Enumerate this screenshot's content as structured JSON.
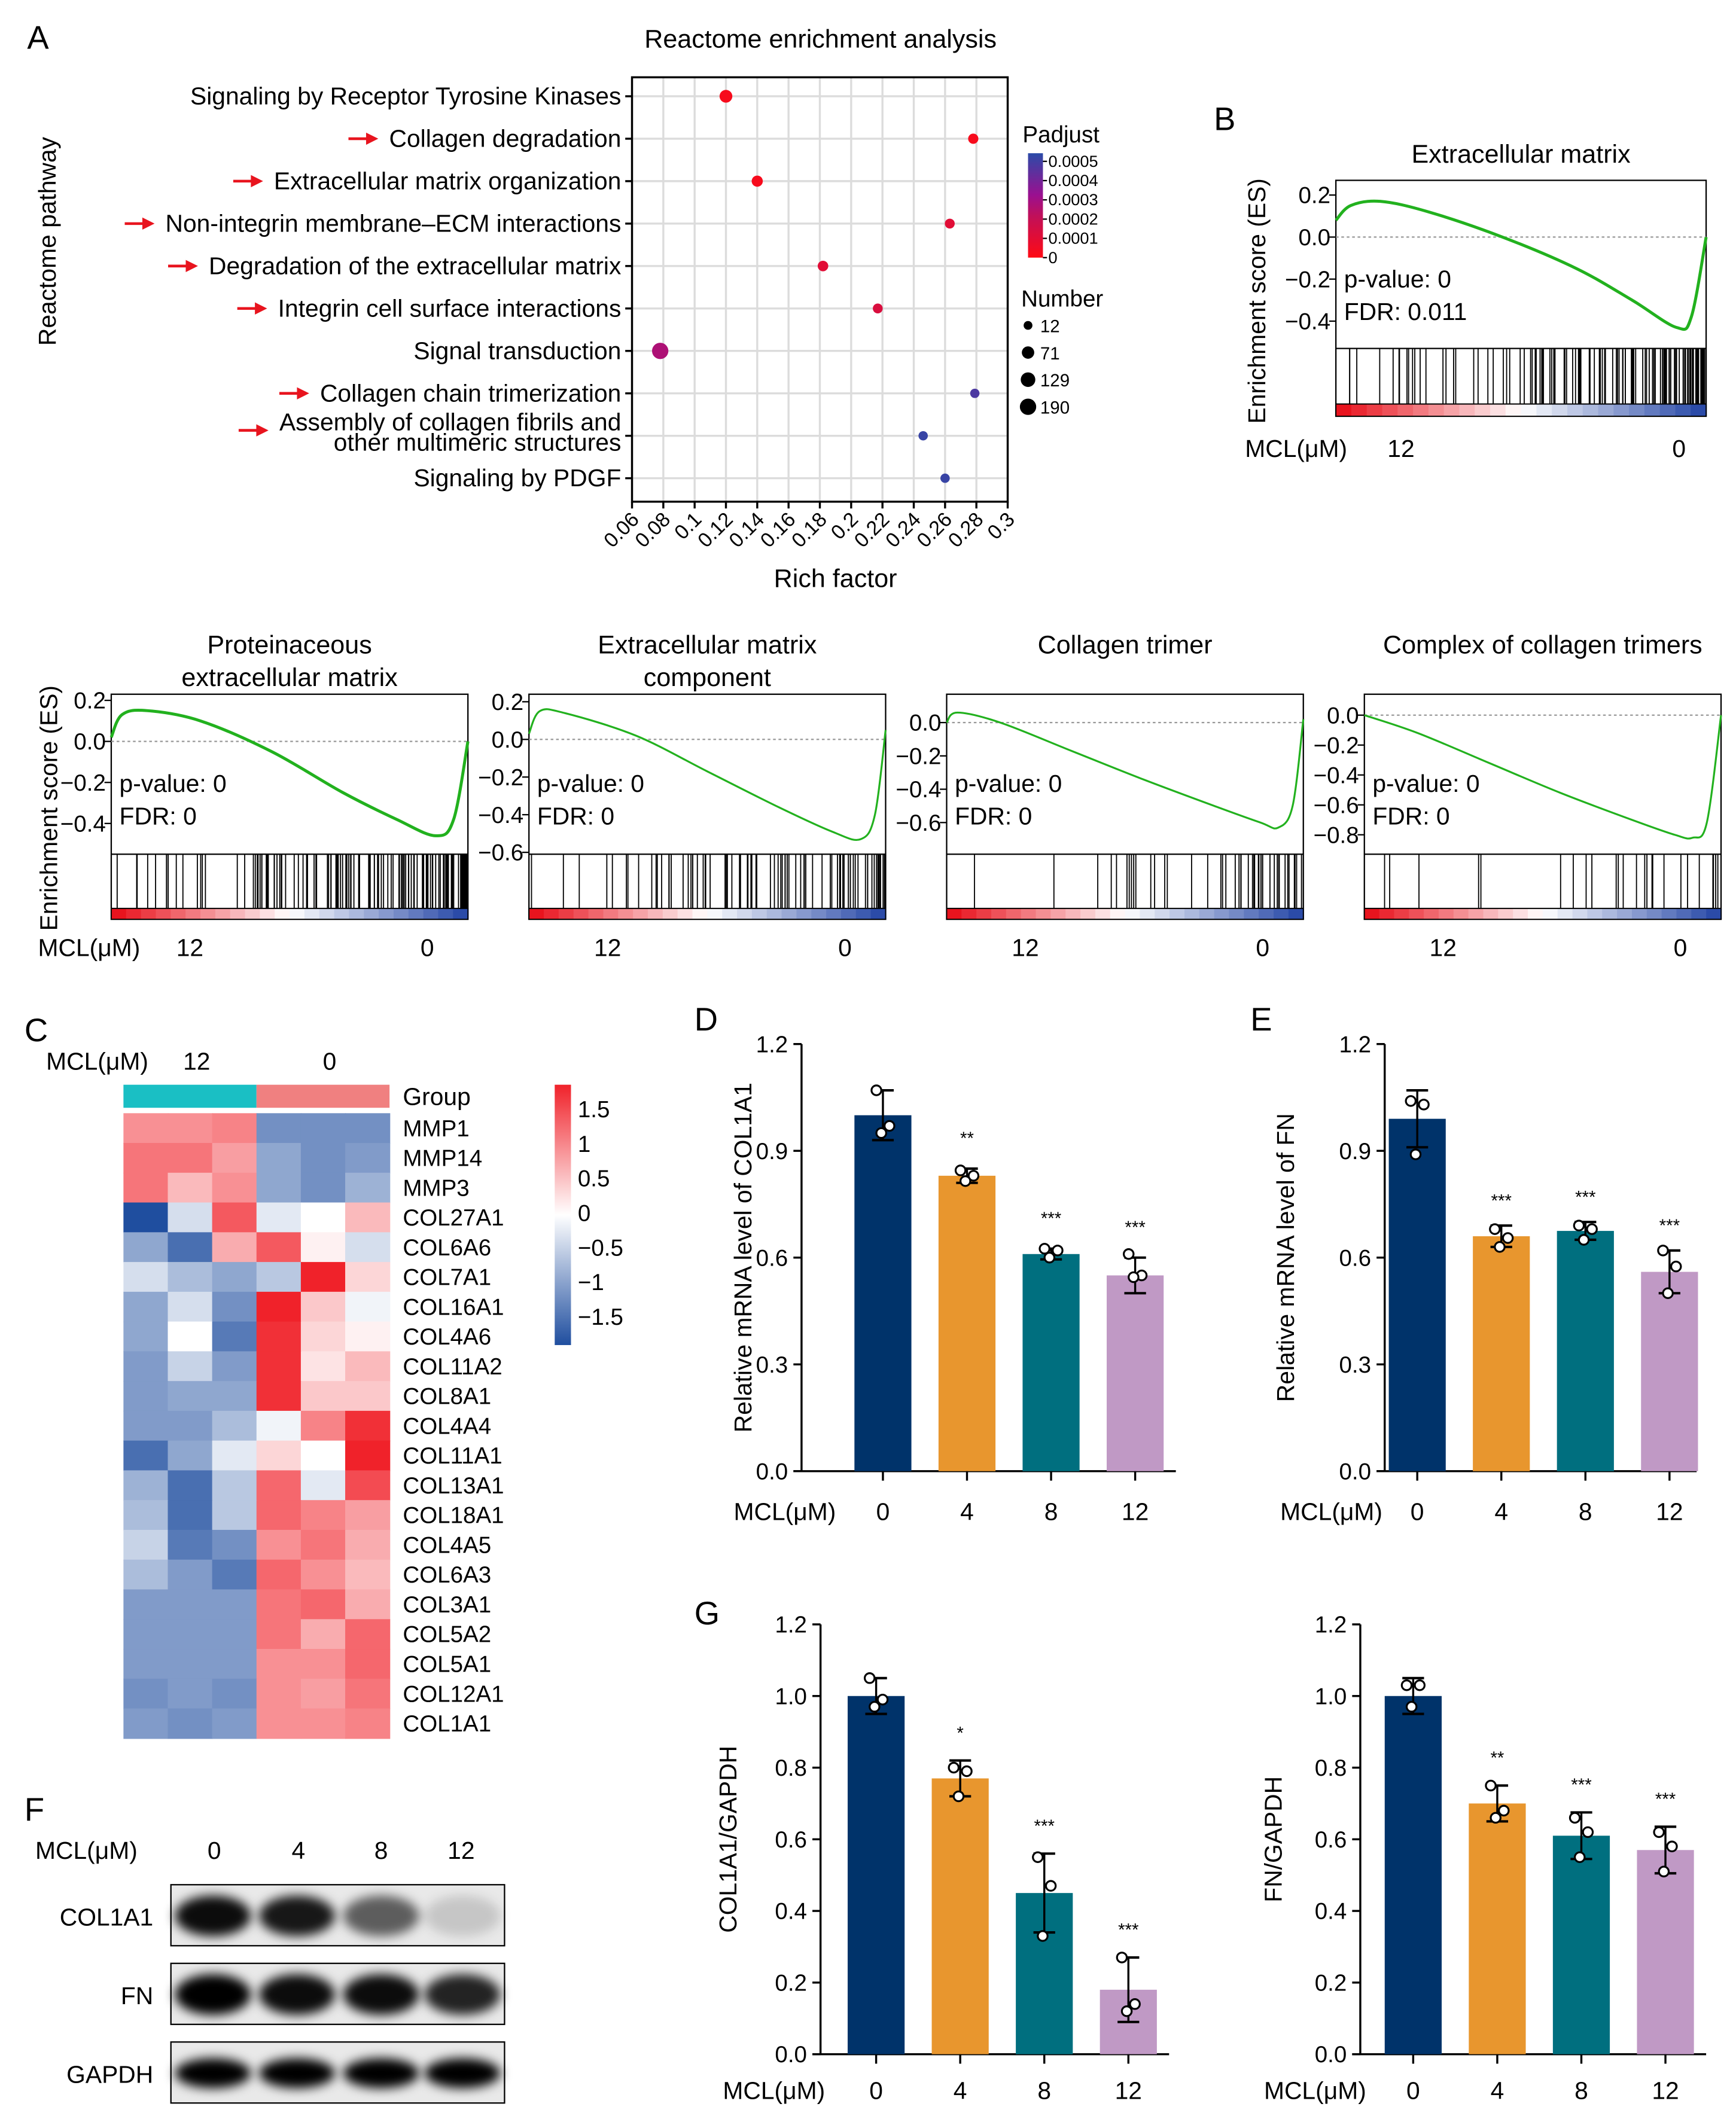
{
  "panel_letters": {
    "a": "A",
    "b": "B",
    "c": "C",
    "d": "D",
    "e": "E",
    "f": "F",
    "g": "G"
  },
  "chart_data": [
    {
      "id": "A",
      "type": "scatter",
      "title": "Reactome enrichment analysis",
      "xlabel": "Rich factor",
      "ylabel": "Reactome pathway",
      "xlim": [
        0.06,
        0.3
      ],
      "xticks": [
        "0.06",
        "0.08",
        "0.1",
        "0.12",
        "0.14",
        "0.16",
        "0.18",
        "0.2",
        "0.22",
        "0.24",
        "0.26",
        "0.28",
        "0.3"
      ],
      "grid": true,
      "arrow_color": "#E8141E",
      "pathways": [
        {
          "label_lines": [
            "Signaling by Receptor Tyrosine Kinases"
          ],
          "rich_factor": 0.12,
          "padjust": 2e-05,
          "number": 80,
          "arrow": false
        },
        {
          "label_lines": [
            "Collagen degradation"
          ],
          "rich_factor": 0.278,
          "padjust": 2e-05,
          "number": 30,
          "arrow": true
        },
        {
          "label_lines": [
            "Extracellular matrix organization"
          ],
          "rich_factor": 0.14,
          "padjust": 2e-05,
          "number": 45,
          "arrow": true
        },
        {
          "label_lines": [
            "Non-integrin membrane–ECM interactions"
          ],
          "rich_factor": 0.263,
          "padjust": 8e-05,
          "number": 25,
          "arrow": true
        },
        {
          "label_lines": [
            "Degradation of the extracellular matrix"
          ],
          "rich_factor": 0.182,
          "padjust": 8e-05,
          "number": 35,
          "arrow": true
        },
        {
          "label_lines": [
            "Integrin cell surface interactions"
          ],
          "rich_factor": 0.217,
          "padjust": 0.0001,
          "number": 25,
          "arrow": true
        },
        {
          "label_lines": [
            "Signal transduction"
          ],
          "rich_factor": 0.078,
          "padjust": 0.00025,
          "number": 190,
          "arrow": false
        },
        {
          "label_lines": [
            "Collagen chain trimerization"
          ],
          "rich_factor": 0.279,
          "padjust": 0.00045,
          "number": 18,
          "arrow": true
        },
        {
          "label_lines": [
            "Assembly of collagen fibrils and",
            "other multimeric structures"
          ],
          "rich_factor": 0.246,
          "padjust": 0.00048,
          "number": 18,
          "arrow": true
        },
        {
          "label_lines": [
            "Signaling by PDGF"
          ],
          "rich_factor": 0.26,
          "padjust": 0.00048,
          "number": 18,
          "arrow": false
        }
      ],
      "legend_color": {
        "title": "Padjust",
        "ticks": [
          "0.0005",
          "0.0004",
          "0.0003",
          "0.0002",
          "0.0001",
          "0"
        ],
        "colors": [
          "#FF0A14",
          "#C0105A",
          "#9A1090",
          "#2B4BA8"
        ]
      },
      "legend_size": {
        "title": "Number",
        "values": [
          "12",
          "71",
          "129",
          "190"
        ]
      }
    },
    {
      "id": "B",
      "type": "line",
      "title_lines": [
        "Extracellular matrix"
      ],
      "ylabel": "Enrichment score (ES)",
      "ylim": [
        -0.53,
        0.27
      ],
      "yticks": [
        "0.2",
        "0.0",
        "−0.2",
        "−0.4"
      ],
      "ytick_values": [
        0.2,
        0,
        -0.2,
        -0.4
      ],
      "stats": [
        "p-value: 0",
        "FDR: 0.011"
      ],
      "curve": [
        [
          0,
          0.08
        ],
        [
          4,
          0.15
        ],
        [
          12,
          0.17
        ],
        [
          25,
          0.12
        ],
        [
          45,
          0.0
        ],
        [
          65,
          -0.15
        ],
        [
          80,
          -0.3
        ],
        [
          92,
          -0.43
        ],
        [
          96,
          -0.38
        ],
        [
          100,
          0.0
        ]
      ],
      "group_label": "MCL(μM)",
      "high": "12",
      "low": "0",
      "line_color": "#22B11E"
    },
    {
      "id": "B2",
      "type": "line",
      "title_lines": [
        "Proteinaceous",
        "extracellular matrix"
      ],
      "ylabel": "Enrichment score (ES)",
      "ylim": [
        -0.55,
        0.23
      ],
      "yticks": [
        "0.2",
        "0.0",
        "−0.2",
        "−0.4"
      ],
      "ytick_values": [
        0.2,
        0,
        -0.2,
        -0.4
      ],
      "stats": [
        "p-value: 0",
        "FDR: 0"
      ],
      "curve": [
        [
          0,
          0.02
        ],
        [
          3,
          0.13
        ],
        [
          10,
          0.15
        ],
        [
          25,
          0.1
        ],
        [
          45,
          -0.05
        ],
        [
          65,
          -0.25
        ],
        [
          80,
          -0.38
        ],
        [
          91,
          -0.46
        ],
        [
          96,
          -0.38
        ],
        [
          100,
          0.0
        ]
      ],
      "group_label": "MCL(μM)",
      "high": "12",
      "low": "0",
      "line_color": "#22B11E"
    },
    {
      "id": "B3",
      "type": "line",
      "title_lines": [
        "Extracellular matrix",
        "component"
      ],
      "ylim": [
        -0.61,
        0.24
      ],
      "yticks": [
        "0.2",
        "0.0",
        "−0.2",
        "−0.4",
        "−0.6"
      ],
      "ytick_values": [
        0.2,
        0,
        -0.2,
        -0.4,
        -0.6
      ],
      "stats": [
        "p-value: 0",
        "FDR: 0"
      ],
      "curve": [
        [
          0,
          0.03
        ],
        [
          3,
          0.15
        ],
        [
          10,
          0.14
        ],
        [
          30,
          0.02
        ],
        [
          50,
          -0.17
        ],
        [
          70,
          -0.36
        ],
        [
          85,
          -0.49
        ],
        [
          93,
          -0.53
        ],
        [
          97,
          -0.4
        ],
        [
          100,
          0.05
        ]
      ],
      "high": "12",
      "low": "0",
      "line_color": "#22B11E"
    },
    {
      "id": "B4",
      "type": "line",
      "title_lines": [
        "Collagen trimer"
      ],
      "ylim": [
        -0.79,
        0.17
      ],
      "yticks": [
        "0.0",
        "−0.2",
        "−0.4",
        "−0.6"
      ],
      "ytick_values": [
        0,
        -0.2,
        -0.4,
        -0.6
      ],
      "stats": [
        "p-value: 0",
        "FDR: 0"
      ],
      "curve": [
        [
          0,
          0.0
        ],
        [
          3,
          0.06
        ],
        [
          15,
          0.0
        ],
        [
          35,
          -0.17
        ],
        [
          55,
          -0.34
        ],
        [
          75,
          -0.5
        ],
        [
          88,
          -0.6
        ],
        [
          93,
          -0.63
        ],
        [
          97,
          -0.5
        ],
        [
          100,
          0.02
        ]
      ],
      "high": "12",
      "low": "0",
      "line_color": "#22B11E"
    },
    {
      "id": "B5",
      "type": "line",
      "title_lines": [
        "Complex of collagen trimers"
      ],
      "ylim": [
        -0.93,
        0.14
      ],
      "yticks": [
        "0.0",
        "−0.2",
        "−0.4",
        "−0.6",
        "−0.8"
      ],
      "ytick_values": [
        0,
        -0.2,
        -0.4,
        -0.6,
        -0.8
      ],
      "stats": [
        "p-value: 0",
        "FDR: 0"
      ],
      "curve": [
        [
          0,
          0.0
        ],
        [
          15,
          -0.12
        ],
        [
          35,
          -0.32
        ],
        [
          55,
          -0.52
        ],
        [
          75,
          -0.7
        ],
        [
          87,
          -0.8
        ],
        [
          92,
          -0.82
        ],
        [
          96,
          -0.72
        ],
        [
          100,
          0.0
        ]
      ],
      "high": "12",
      "low": "0",
      "line_color": "#22B11E"
    },
    {
      "id": "C",
      "type": "heatmap",
      "group_label": "MCL(μM)",
      "column_groups": [
        "12",
        "0"
      ],
      "group_title": "Group",
      "group_colors": [
        "#1ABFC4",
        "#F08080"
      ],
      "scale_ticks": [
        "1.5",
        "1",
        "0.5",
        "0",
        "−0.5",
        "−1",
        "−1.5"
      ],
      "range": [
        -1.6,
        1.6
      ],
      "colors": [
        "#1F4E9F",
        "#FFFFFF",
        "#F0222A"
      ],
      "rows": [
        {
          "gene": "MMP1",
          "values": [
            0.8,
            0.8,
            0.9,
            -1,
            -1,
            -1
          ]
        },
        {
          "gene": "MMP14",
          "values": [
            1,
            1,
            0.7,
            -0.8,
            -1,
            -0.9
          ]
        },
        {
          "gene": "MMP3",
          "values": [
            1,
            0.5,
            0.8,
            -0.8,
            -1,
            -0.7
          ]
        },
        {
          "gene": "COL27A1",
          "values": [
            -1.6,
            -0.3,
            1.2,
            -0.2,
            0,
            0.5
          ]
        },
        {
          "gene": "COL6A6",
          "values": [
            -0.8,
            -1.3,
            0.6,
            1.2,
            0.1,
            -0.3
          ]
        },
        {
          "gene": "COL7A1",
          "values": [
            -0.3,
            -0.6,
            -0.8,
            -0.5,
            1.6,
            0.3
          ]
        },
        {
          "gene": "COL16A1",
          "values": [
            -0.8,
            -0.3,
            -1,
            1.6,
            0.4,
            -0.1
          ]
        },
        {
          "gene": "COL4A6",
          "values": [
            -0.8,
            0,
            -1.2,
            1.5,
            0.3,
            0.1
          ]
        },
        {
          "gene": "COL11A2",
          "values": [
            -0.9,
            -0.4,
            -0.9,
            1.5,
            0.2,
            0.5
          ]
        },
        {
          "gene": "COL8A1",
          "values": [
            -0.9,
            -0.8,
            -0.8,
            1.5,
            0.4,
            0.4
          ]
        },
        {
          "gene": "COL4A4",
          "values": [
            -0.9,
            -0.9,
            -0.6,
            -0.1,
            0.9,
            1.5
          ]
        },
        {
          "gene": "COL11A1",
          "values": [
            -1.3,
            -0.8,
            -0.2,
            0.3,
            0,
            1.6
          ]
        },
        {
          "gene": "COL13A1",
          "values": [
            -0.7,
            -1.3,
            -0.5,
            1.1,
            -0.2,
            1.3
          ]
        },
        {
          "gene": "COL18A1",
          "values": [
            -0.6,
            -1.3,
            -0.5,
            1.1,
            0.9,
            0.7
          ]
        },
        {
          "gene": "COL4A5",
          "values": [
            -0.4,
            -1.2,
            -1,
            0.8,
            1,
            0.6
          ]
        },
        {
          "gene": "COL6A3",
          "values": [
            -0.6,
            -0.9,
            -1.2,
            1.1,
            0.8,
            0.5
          ]
        },
        {
          "gene": "COL3A1",
          "values": [
            -0.9,
            -0.9,
            -0.9,
            1,
            1.1,
            0.6
          ]
        },
        {
          "gene": "COL5A2",
          "values": [
            -0.9,
            -0.9,
            -0.9,
            1,
            0.6,
            1.1
          ]
        },
        {
          "gene": "COL5A1",
          "values": [
            -0.9,
            -0.9,
            -0.9,
            0.8,
            0.8,
            1.1
          ]
        },
        {
          "gene": "COL12A1",
          "values": [
            -1,
            -0.9,
            -1,
            0.8,
            0.7,
            1
          ]
        },
        {
          "gene": "COL1A1",
          "values": [
            -0.9,
            -1,
            -0.9,
            0.8,
            0.8,
            0.9
          ]
        }
      ]
    },
    {
      "id": "D",
      "type": "bar",
      "ylabel": "Relative mRNA level of COL1A1",
      "xlabel": "MCL(μM)",
      "categories": [
        "0",
        "4",
        "8",
        "12"
      ],
      "ylim": [
        0,
        1.2
      ],
      "yticks": [
        "0.0",
        "0.3",
        "0.6",
        "0.9",
        "1.2"
      ],
      "ytick_values": [
        0,
        0.3,
        0.6,
        0.9,
        1.2
      ],
      "values": [
        1.0,
        0.83,
        0.61,
        0.55
      ],
      "errors": [
        0.07,
        0.02,
        0.015,
        0.05
      ],
      "points": [
        [
          1.07,
          0.97,
          0.95
        ],
        [
          0.845,
          0.83,
          0.815
        ],
        [
          0.625,
          0.62,
          0.6
        ],
        [
          0.61,
          0.55,
          0.545
        ]
      ],
      "significance": [
        "",
        "**",
        "***",
        "***"
      ],
      "colors": [
        "#00336A",
        "#E8962E",
        "#006F7F",
        "#C099C5"
      ]
    },
    {
      "id": "E",
      "type": "bar",
      "ylabel": "Relative mRNA level of FN",
      "xlabel": "MCL(μM)",
      "categories": [
        "0",
        "4",
        "8",
        "12"
      ],
      "ylim": [
        0,
        1.2
      ],
      "yticks": [
        "0.0",
        "0.3",
        "0.6",
        "0.9",
        "1.2"
      ],
      "ytick_values": [
        0,
        0.3,
        0.6,
        0.9,
        1.2
      ],
      "values": [
        0.99,
        0.66,
        0.675,
        0.56
      ],
      "errors": [
        0.08,
        0.03,
        0.025,
        0.06
      ],
      "points": [
        [
          1.04,
          1.03,
          0.89
        ],
        [
          0.68,
          0.655,
          0.63
        ],
        [
          0.69,
          0.68,
          0.65
        ],
        [
          0.62,
          0.575,
          0.5
        ]
      ],
      "significance": [
        "",
        "***",
        "***",
        "***"
      ],
      "colors": [
        "#00336A",
        "#E8962E",
        "#006F7F",
        "#C099C5"
      ]
    },
    {
      "id": "G1",
      "type": "bar",
      "ylabel": "COL1A1/GAPDH",
      "xlabel": "MCL(μM)",
      "categories": [
        "0",
        "4",
        "8",
        "12"
      ],
      "ylim": [
        0,
        1.2
      ],
      "yticks": [
        "0.0",
        "0.2",
        "0.4",
        "0.6",
        "0.8",
        "1.0",
        "1.2"
      ],
      "ytick_values": [
        0,
        0.2,
        0.4,
        0.6,
        0.8,
        1.0,
        1.2
      ],
      "values": [
        1.0,
        0.77,
        0.45,
        0.18
      ],
      "errors": [
        0.05,
        0.05,
        0.11,
        0.09
      ],
      "points": [
        [
          1.05,
          0.99,
          0.97
        ],
        [
          0.8,
          0.79,
          0.72
        ],
        [
          0.55,
          0.47,
          0.33
        ],
        [
          0.27,
          0.14,
          0.12
        ]
      ],
      "significance": [
        "",
        "*",
        "***",
        "***"
      ],
      "colors": [
        "#00336A",
        "#E8962E",
        "#006F7F",
        "#C099C5"
      ]
    },
    {
      "id": "G2",
      "type": "bar",
      "ylabel": "FN/GAPDH",
      "xlabel": "MCL(μM)",
      "categories": [
        "0",
        "4",
        "8",
        "12"
      ],
      "ylim": [
        0,
        1.2
      ],
      "yticks": [
        "0.0",
        "0.2",
        "0.4",
        "0.6",
        "0.8",
        "1.0",
        "1.2"
      ],
      "ytick_values": [
        0,
        0.2,
        0.4,
        0.6,
        0.8,
        1.0,
        1.2
      ],
      "values": [
        1.0,
        0.7,
        0.61,
        0.57
      ],
      "errors": [
        0.05,
        0.05,
        0.065,
        0.065
      ],
      "points": [
        [
          1.03,
          1.03,
          0.97
        ],
        [
          0.75,
          0.68,
          0.66
        ],
        [
          0.66,
          0.62,
          0.55
        ],
        [
          0.62,
          0.58,
          0.51
        ]
      ],
      "significance": [
        "",
        "**",
        "***",
        "***"
      ],
      "colors": [
        "#00336A",
        "#E8962E",
        "#006F7F",
        "#C099C5"
      ]
    }
  ],
  "western_blot": {
    "group_label": "MCL(μM)",
    "lanes": [
      "0",
      "4",
      "8",
      "12"
    ],
    "bands": [
      {
        "label": "COL1A1",
        "intensity": [
          0.95,
          0.9,
          0.6,
          0.15
        ]
      },
      {
        "label": "FN",
        "intensity": [
          1,
          0.95,
          0.95,
          0.85
        ]
      },
      {
        "label": "GAPDH",
        "intensity": [
          1,
          1,
          1,
          1
        ]
      }
    ]
  }
}
